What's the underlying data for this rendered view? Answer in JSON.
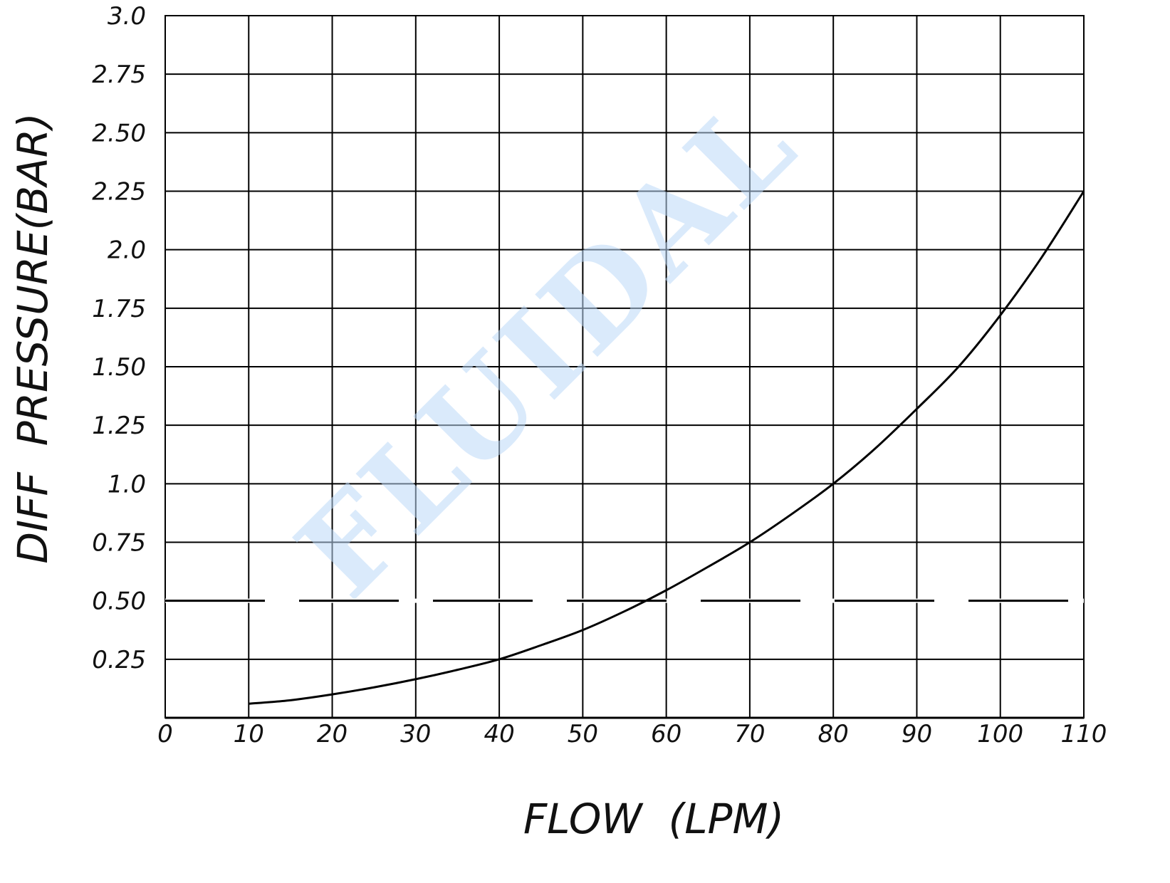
{
  "chart_data": {
    "type": "line",
    "title": "",
    "xlabel": "FLOW  (LPM)",
    "ylabel": "DIFF  PRESSURE(BAR)",
    "xlim": [
      0,
      110
    ],
    "ylim": [
      0,
      3.0
    ],
    "grid": true,
    "x_ticks": [
      0,
      10,
      20,
      30,
      40,
      50,
      60,
      70,
      80,
      90,
      100,
      110
    ],
    "x_tick_labels": [
      "0",
      "10",
      "20",
      "30",
      "40",
      "50",
      "60",
      "70",
      "80",
      "90",
      "100",
      "110"
    ],
    "y_ticks": [
      0.25,
      0.5,
      0.75,
      1.0,
      1.25,
      1.5,
      1.75,
      2.0,
      2.25,
      2.5,
      2.75,
      3.0
    ],
    "y_tick_labels": [
      "0.25",
      "0.50",
      "0.75",
      "1.0",
      "1.25",
      "1.50",
      "1.75",
      "2.0",
      "2.25",
      "2.50",
      "2.75",
      "3.0"
    ],
    "series": [
      {
        "x": [
          10,
          15,
          20,
          25,
          30,
          35,
          40,
          45,
          50,
          55,
          60,
          65,
          70,
          75,
          80,
          85,
          90,
          95,
          100,
          105,
          110
        ],
        "y": [
          0.06,
          0.075,
          0.1,
          0.13,
          0.165,
          0.205,
          0.25,
          0.31,
          0.375,
          0.455,
          0.545,
          0.645,
          0.75,
          0.87,
          1.0,
          1.15,
          1.32,
          1.5,
          1.72,
          1.97,
          2.25
        ],
        "color": "#000000"
      }
    ],
    "reference_line": {
      "y": 0.5,
      "style": "dashed",
      "x_range": [
        0,
        110
      ],
      "color": "#000000"
    },
    "watermark": "FLUIDAL"
  }
}
